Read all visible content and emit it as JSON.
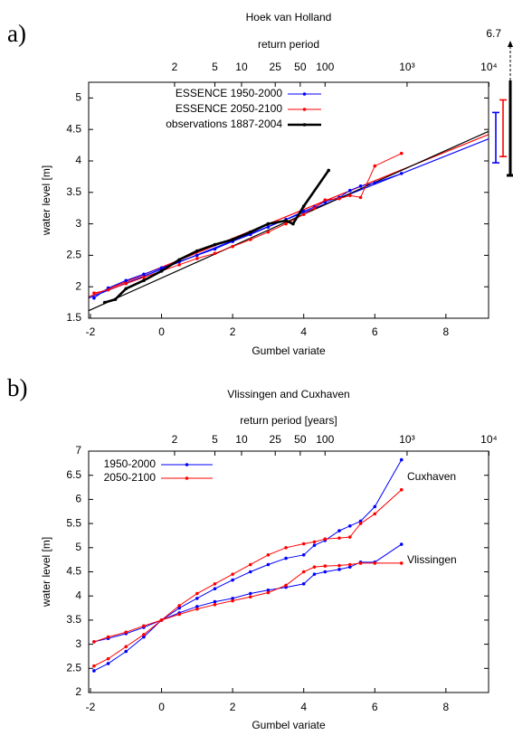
{
  "chart_data": [
    {
      "type": "line",
      "panel_label": "a)",
      "title": "Hoek van Holland",
      "x2label": "return period",
      "xlabel": "Gumbel variate",
      "ylabel": "water level [m]",
      "xlim": [
        -2.05,
        9.2
      ],
      "ylim": [
        1.5,
        5.25
      ],
      "xticks": [
        -2,
        0,
        2,
        4,
        6,
        8
      ],
      "yticks": [
        1.5,
        2,
        2.5,
        3,
        3.5,
        4,
        4.5,
        5
      ],
      "x2ticks": [
        2,
        5,
        10,
        25,
        50,
        100,
        {
          "value": 1000,
          "label": "10³"
        },
        {
          "value": 10000,
          "label": "10⁴"
        }
      ],
      "legend": "upper left",
      "series": [
        {
          "name": "ESSENCE 1950-2000",
          "color": "#0000ff",
          "x": [
            -1.9,
            -1.5,
            -1,
            -0.5,
            0,
            0.5,
            1,
            1.5,
            2,
            2.5,
            3,
            3.5,
            4,
            4.3,
            4.6,
            5.0,
            5.3,
            5.6,
            6.0,
            6.75
          ],
          "values": [
            1.82,
            1.98,
            2.1,
            2.2,
            2.3,
            2.4,
            2.5,
            2.6,
            2.72,
            2.83,
            2.95,
            3.07,
            3.2,
            3.27,
            3.35,
            3.42,
            3.53,
            3.6,
            3.65,
            3.8
          ]
        },
        {
          "name": "ESSENCE 2050-2100",
          "color": "#ff0000",
          "x": [
            -1.9,
            -1.5,
            -1,
            -0.5,
            0,
            0.5,
            1,
            1.5,
            2,
            2.5,
            3,
            3.5,
            4,
            4.3,
            4.6,
            5.0,
            5.3,
            5.6,
            6.0,
            6.75
          ],
          "values": [
            1.9,
            1.95,
            2.05,
            2.15,
            2.25,
            2.35,
            2.45,
            2.53,
            2.64,
            2.75,
            2.87,
            3.0,
            3.15,
            3.25,
            3.38,
            3.4,
            3.45,
            3.42,
            3.92,
            4.12
          ]
        },
        {
          "name": "observations 1887-2004",
          "color": "#000000",
          "x": [
            -1.6,
            -1.3,
            -1,
            -0.5,
            0,
            0.5,
            1,
            1.5,
            2,
            2.5,
            3,
            3.5,
            3.7,
            4.0,
            4.7
          ],
          "values": [
            1.75,
            1.8,
            1.97,
            2.1,
            2.25,
            2.43,
            2.57,
            2.67,
            2.75,
            2.87,
            3.0,
            3.05,
            3.0,
            3.28,
            3.85
          ]
        }
      ],
      "fit_lines": [
        {
          "color": "#0000ff",
          "x": [
            -2.05,
            9.2
          ],
          "values": [
            1.82,
            4.35
          ]
        },
        {
          "color": "#ff0000",
          "x": [
            -2.05,
            9.2
          ],
          "values": [
            1.84,
            4.42
          ]
        },
        {
          "color": "#000000",
          "x": [
            -2.05,
            9.2
          ],
          "values": [
            1.62,
            4.47
          ]
        }
      ],
      "error_bars": [
        {
          "color": "#0000ff",
          "low": 3.97,
          "high": 4.77
        },
        {
          "color": "#ff0000",
          "low": 4.07,
          "high": 4.97
        },
        {
          "color": "#000000",
          "low": 3.77,
          "high": 6.7
        }
      ]
    },
    {
      "type": "line",
      "panel_label": "b)",
      "title": "Vlissingen and Cuxhaven",
      "x2label": "return period [years]",
      "xlabel": "Gumbel variate",
      "ylabel": "water level [m]",
      "xlim": [
        -2.05,
        9.2
      ],
      "ylim": [
        2,
        7
      ],
      "xticks": [
        -2,
        0,
        2,
        4,
        6,
        8
      ],
      "yticks": [
        2,
        2.5,
        3,
        3.5,
        4,
        4.5,
        5,
        5.5,
        6,
        6.5,
        7
      ],
      "x2ticks": [
        2,
        5,
        10,
        25,
        50,
        100,
        {
          "value": 1000,
          "label": "10³"
        },
        {
          "value": 10000,
          "label": "10⁴"
        }
      ],
      "legend": "upper left",
      "annotations": [
        "Cuxhaven",
        "Vlissingen"
      ],
      "series": [
        {
          "name": "1950-2000",
          "color": "#0000ff",
          "curves": [
            {
              "x": [
                -1.9,
                -1.5,
                -1,
                -0.5,
                0,
                0.5,
                1,
                1.5,
                2,
                2.5,
                3,
                3.5,
                4,
                4.3,
                4.6,
                5,
                5.3,
                5.6,
                6,
                6.75
              ],
              "values": [
                2.45,
                2.6,
                2.85,
                3.15,
                3.5,
                3.75,
                3.95,
                4.15,
                4.33,
                4.5,
                4.65,
                4.78,
                4.85,
                5.05,
                5.15,
                5.35,
                5.45,
                5.55,
                5.85,
                6.82
              ]
            },
            {
              "x": [
                -1.9,
                -1.5,
                -1,
                -0.5,
                0,
                0.5,
                1,
                1.5,
                2,
                2.5,
                3,
                3.5,
                4,
                4.3,
                4.6,
                5,
                5.3,
                5.6,
                6,
                6.75
              ],
              "values": [
                3.05,
                3.12,
                3.22,
                3.35,
                3.5,
                3.65,
                3.78,
                3.88,
                3.95,
                4.05,
                4.12,
                4.18,
                4.25,
                4.45,
                4.5,
                4.55,
                4.6,
                4.7,
                4.7,
                5.07
              ]
            }
          ]
        },
        {
          "name": "2050-2100",
          "color": "#ff0000",
          "curves": [
            {
              "x": [
                -1.9,
                -1.5,
                -1,
                -0.5,
                0,
                0.5,
                1,
                1.5,
                2,
                2.5,
                3,
                3.5,
                4,
                4.3,
                4.6,
                5,
                5.3,
                5.6,
                6,
                6.75
              ],
              "values": [
                2.55,
                2.7,
                2.95,
                3.2,
                3.5,
                3.8,
                4.05,
                4.25,
                4.45,
                4.65,
                4.85,
                5.0,
                5.08,
                5.12,
                5.18,
                5.2,
                5.22,
                5.5,
                5.7,
                6.2
              ]
            },
            {
              "x": [
                -1.9,
                -1.5,
                -1,
                -0.5,
                0,
                0.5,
                1,
                1.5,
                2,
                2.5,
                3,
                3.5,
                4,
                4.3,
                4.6,
                5,
                5.3,
                5.6,
                6,
                6.75
              ],
              "values": [
                3.05,
                3.15,
                3.25,
                3.38,
                3.5,
                3.62,
                3.73,
                3.82,
                3.9,
                3.98,
                4.07,
                4.22,
                4.5,
                4.6,
                4.62,
                4.63,
                4.65,
                4.68,
                4.68,
                4.68
              ]
            }
          ]
        }
      ]
    }
  ]
}
